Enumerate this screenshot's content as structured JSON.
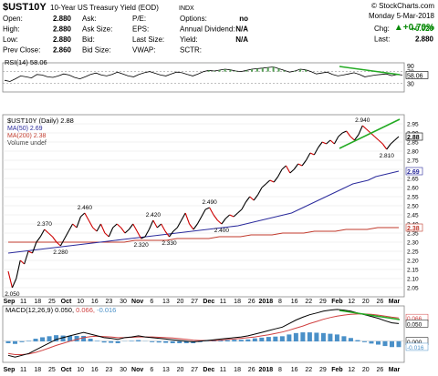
{
  "header": {
    "symbol": "$UST10Y",
    "name": "10-Year US Treasury Yield (EOD)",
    "exchange": "INDX",
    "copyright": "© StockCharts.com",
    "date": "Monday   5-Mar-2018",
    "change_pct": "▲+0.70%",
    "quote_rows": [
      {
        "l1": "Open:",
        "v1": "2.880",
        "l2": "Ask:",
        "v2": "",
        "l3": "P/E:",
        "v3": "",
        "l4": "Options:",
        "v4": "no",
        "l5": "Chg:",
        "v5": "+0.020"
      },
      {
        "l1": "High:",
        "v1": "2.880",
        "l2": "Ask Size:",
        "v2": "",
        "l3": "EPS:",
        "v3": "",
        "l4": "Annual Dividend:",
        "v4": "N/A",
        "l5": "Last:",
        "v5": "2.880"
      },
      {
        "l1": "Low:",
        "v1": "2.880",
        "l2": "Bid:",
        "v2": "",
        "l3": "Last Size:",
        "v3": "",
        "l4": "Yield:",
        "v4": "N/A",
        "l5": "",
        "": ""
      },
      {
        "l1": "Prev Close:",
        "v1": "2.860",
        "l2": "Bid Size:",
        "v2": "",
        "l3": "VWAP:",
        "v3": "",
        "l4": "SCTR:",
        "v4": "",
        "l5": "",
        "v5": ""
      }
    ]
  },
  "colors": {
    "price": "#000000",
    "up": "#000000",
    "down": "#cc0000",
    "ma50": "#2b2b9c",
    "ma200": "#c0392b",
    "trend": "#22aa22",
    "macd": "#000000",
    "signal": "#d04040",
    "hist": "#4a90c8",
    "rsi": "#000000"
  },
  "chart_data": [
    {
      "type": "line",
      "title": "RSI(14) 58.06",
      "ylim": [
        0,
        100
      ],
      "right_ticks": [
        "90",
        "70",
        "58.06",
        "30"
      ],
      "values": [
        40,
        36,
        45,
        55,
        52,
        48,
        60,
        58,
        52,
        50,
        55,
        62,
        58,
        50,
        45,
        52,
        60,
        65,
        58,
        55,
        60,
        68,
        62,
        55,
        52,
        60,
        66,
        70,
        64,
        58,
        55,
        62,
        68,
        66,
        60,
        55,
        62,
        70,
        74,
        72,
        75,
        78,
        76,
        72,
        70,
        74,
        78,
        80,
        82,
        84,
        86,
        80,
        74,
        68,
        72,
        78,
        76,
        70,
        62,
        65,
        68,
        60,
        55,
        58,
        62,
        66,
        60,
        52,
        55,
        58,
        60,
        62,
        56,
        60,
        58
      ]
    },
    {
      "type": "line",
      "title": "$UST10Y (Daily) 2.88",
      "ylabel": "",
      "ylim": [
        2.0,
        3.0
      ],
      "y_ticks": [
        2.05,
        2.1,
        2.15,
        2.2,
        2.25,
        2.3,
        2.35,
        2.4,
        2.45,
        2.5,
        2.55,
        2.6,
        2.65,
        2.7,
        2.75,
        2.8,
        2.85,
        2.9,
        2.95
      ],
      "x_labels": [
        "Sep",
        "11",
        "18",
        "25",
        "Oct",
        "10",
        "16",
        "23",
        "30",
        "Nov",
        "6",
        "13",
        "20",
        "27",
        "Dec",
        "11",
        "18",
        "26",
        "2018",
        "8",
        "16",
        "22",
        "29",
        "Feb",
        "12",
        "20",
        "26",
        "Mar"
      ],
      "series": [
        {
          "name": "MA(50) 2.69",
          "values": [
            2.24,
            2.245,
            2.25,
            2.255,
            2.26,
            2.265,
            2.27,
            2.275,
            2.28,
            2.285,
            2.29,
            2.295,
            2.3,
            2.305,
            2.31,
            2.315,
            2.32,
            2.325,
            2.33,
            2.335,
            2.34,
            2.345,
            2.35,
            2.355,
            2.36,
            2.365,
            2.37,
            2.375,
            2.38,
            2.385,
            2.39,
            2.4,
            2.41,
            2.42,
            2.43,
            2.44,
            2.45,
            2.46,
            2.48,
            2.5,
            2.52,
            2.54,
            2.56,
            2.58,
            2.6,
            2.62,
            2.63,
            2.64,
            2.66,
            2.67,
            2.68,
            2.69
          ]
        },
        {
          "name": "MA(200) 2.38",
          "values": [
            2.3,
            2.3,
            2.3,
            2.3,
            2.3,
            2.3,
            2.3,
            2.3,
            2.3,
            2.3,
            2.3,
            2.3,
            2.31,
            2.31,
            2.31,
            2.31,
            2.32,
            2.32,
            2.32,
            2.32,
            2.33,
            2.33,
            2.33,
            2.34,
            2.34,
            2.34,
            2.35,
            2.35,
            2.35,
            2.36,
            2.36,
            2.36,
            2.37,
            2.37,
            2.37,
            2.38,
            2.38,
            2.38
          ]
        },
        {
          "name": "$UST10Y",
          "values": [
            2.14,
            2.05,
            2.1,
            2.2,
            2.18,
            2.25,
            2.24,
            2.3,
            2.33,
            2.37,
            2.35,
            2.33,
            2.3,
            2.28,
            2.32,
            2.36,
            2.4,
            2.38,
            2.44,
            2.46,
            2.42,
            2.38,
            2.36,
            2.4,
            2.35,
            2.33,
            2.38,
            2.4,
            2.38,
            2.35,
            2.37,
            2.4,
            2.36,
            2.32,
            2.33,
            2.37,
            2.42,
            2.38,
            2.4,
            2.36,
            2.33,
            2.36,
            2.38,
            2.42,
            2.46,
            2.4,
            2.37,
            2.4,
            2.44,
            2.48,
            2.49,
            2.45,
            2.42,
            2.4,
            2.43,
            2.45,
            2.44,
            2.46,
            2.48,
            2.52,
            2.55,
            2.53,
            2.56,
            2.6,
            2.62,
            2.64,
            2.63,
            2.66,
            2.7,
            2.72,
            2.68,
            2.7,
            2.73,
            2.72,
            2.75,
            2.79,
            2.78,
            2.82,
            2.85,
            2.84,
            2.86,
            2.84,
            2.88,
            2.9,
            2.91,
            2.88,
            2.86,
            2.89,
            2.94,
            2.92,
            2.9,
            2.88,
            2.86,
            2.84,
            2.81,
            2.84,
            2.86,
            2.88
          ]
        }
      ],
      "annotations": [
        {
          "label": "2.050",
          "x": 1,
          "y": 2.05,
          "pos": "below"
        },
        {
          "label": "2.370",
          "x": 9,
          "y": 2.37,
          "pos": "above"
        },
        {
          "label": "2.280",
          "x": 13,
          "y": 2.28,
          "pos": "below"
        },
        {
          "label": "2.460",
          "x": 19,
          "y": 2.46,
          "pos": "above"
        },
        {
          "label": "2.420",
          "x": 36,
          "y": 2.42,
          "pos": "above"
        },
        {
          "label": "2.320",
          "x": 33,
          "y": 2.32,
          "pos": "below"
        },
        {
          "label": "2.330",
          "x": 40,
          "y": 2.33,
          "pos": "below"
        },
        {
          "label": "2.490",
          "x": 50,
          "y": 2.49,
          "pos": "above"
        },
        {
          "label": "2.400",
          "x": 53,
          "y": 2.4,
          "pos": "below"
        },
        {
          "label": "2.940",
          "x": 88,
          "y": 2.94,
          "pos": "above"
        },
        {
          "label": "2.810",
          "x": 94,
          "y": 2.81,
          "pos": "below"
        }
      ],
      "legend_extra": "Volume undef",
      "last_value_badge": "2.88"
    },
    {
      "type": "line",
      "title": "MACD(12,26,9) 0.050, 0.066, -0.016",
      "legend_parts": [
        "MACD(12,26,9) 0.050,",
        " 0.066,",
        " -0.016"
      ],
      "ylim": [
        -0.06,
        0.1
      ],
      "right_ticks": [
        "0.066",
        "0.050",
        "0.000",
        "-0.016"
      ],
      "series": [
        {
          "name": "MACD",
          "values": [
            -0.04,
            -0.045,
            -0.04,
            -0.035,
            -0.025,
            -0.015,
            -0.005,
            0.005,
            0.01,
            0.015,
            0.02,
            0.025,
            0.02,
            0.015,
            0.01,
            0.008,
            0.005,
            0.01,
            0.012,
            0.015,
            0.012,
            0.01,
            0.008,
            0.006,
            0.004,
            0.002,
            0.0,
            -0.002,
            0.0,
            0.002,
            0.004,
            0.006,
            0.008,
            0.01,
            0.012,
            0.015,
            0.02,
            0.025,
            0.03,
            0.035,
            0.04,
            0.05,
            0.06,
            0.068,
            0.075,
            0.08,
            0.085,
            0.088,
            0.09,
            0.088,
            0.085,
            0.08,
            0.075,
            0.07,
            0.065,
            0.058,
            0.052,
            0.05
          ]
        },
        {
          "name": "Signal",
          "values": [
            -0.035,
            -0.038,
            -0.038,
            -0.036,
            -0.032,
            -0.026,
            -0.019,
            -0.012,
            -0.006,
            0.0,
            0.005,
            0.01,
            0.013,
            0.014,
            0.013,
            0.012,
            0.01,
            0.01,
            0.011,
            0.012,
            0.012,
            0.012,
            0.011,
            0.01,
            0.009,
            0.007,
            0.005,
            0.003,
            0.002,
            0.002,
            0.002,
            0.003,
            0.005,
            0.006,
            0.008,
            0.01,
            0.012,
            0.015,
            0.018,
            0.022,
            0.026,
            0.031,
            0.037,
            0.043,
            0.05,
            0.056,
            0.062,
            0.067,
            0.071,
            0.074,
            0.076,
            0.077,
            0.077,
            0.076,
            0.074,
            0.071,
            0.068,
            0.066
          ]
        }
      ]
    }
  ]
}
